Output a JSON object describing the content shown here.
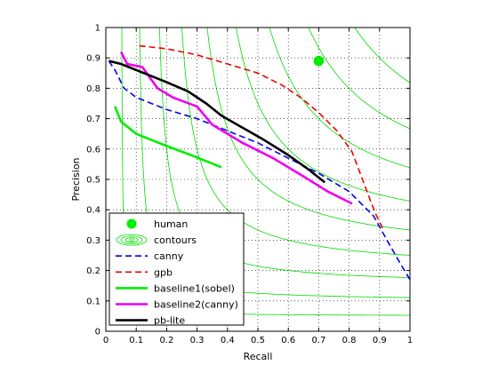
{
  "chart_data": {
    "type": "line",
    "title": "",
    "xlabel": "Recall",
    "ylabel": "Precision",
    "xlim": [
      0,
      1
    ],
    "ylim": [
      0,
      1
    ],
    "xticks": [
      "0",
      "0.1",
      "0.2",
      "0.3",
      "0.4",
      "0.5",
      "0.6",
      "0.7",
      "0.8",
      "0.9",
      "1"
    ],
    "yticks": [
      "0",
      "0.1",
      "0.2",
      "0.3",
      "0.4",
      "0.5",
      "0.6",
      "0.7",
      "0.8",
      "0.9",
      "1"
    ],
    "grid": "dotted",
    "legend_position": "bottom-left",
    "contour_f_values": [
      0.1,
      0.2,
      0.3,
      0.4,
      0.5,
      0.6,
      0.7,
      0.8,
      0.9
    ],
    "series": [
      {
        "name": "human",
        "kind": "marker",
        "color": "#00ee00",
        "points": [
          [
            0.7,
            0.89
          ]
        ]
      },
      {
        "name": "contours",
        "kind": "iso-f",
        "color": "#00dd00"
      },
      {
        "name": "canny",
        "kind": "line",
        "color": "#0000ee",
        "dash": "dashed",
        "points": [
          [
            0.01,
            0.89
          ],
          [
            0.03,
            0.86
          ],
          [
            0.06,
            0.8
          ],
          [
            0.1,
            0.77
          ],
          [
            0.2,
            0.73
          ],
          [
            0.3,
            0.7
          ],
          [
            0.4,
            0.66
          ],
          [
            0.5,
            0.62
          ],
          [
            0.6,
            0.57
          ],
          [
            0.7,
            0.52
          ],
          [
            0.8,
            0.46
          ],
          [
            0.88,
            0.38
          ],
          [
            0.93,
            0.29
          ],
          [
            0.97,
            0.22
          ],
          [
            1.0,
            0.17
          ]
        ]
      },
      {
        "name": "gpb",
        "kind": "line",
        "color": "#ee0000",
        "dash": "dashed",
        "points": [
          [
            0.11,
            0.94
          ],
          [
            0.2,
            0.93
          ],
          [
            0.3,
            0.91
          ],
          [
            0.4,
            0.88
          ],
          [
            0.5,
            0.85
          ],
          [
            0.58,
            0.81
          ],
          [
            0.64,
            0.77
          ],
          [
            0.7,
            0.72
          ],
          [
            0.76,
            0.66
          ],
          [
            0.81,
            0.59
          ],
          [
            0.84,
            0.51
          ],
          [
            0.87,
            0.43
          ],
          [
            0.89,
            0.38
          ],
          [
            0.91,
            0.34
          ]
        ]
      },
      {
        "name": "baseline1(sobel)",
        "kind": "line",
        "color": "#00ee00",
        "dash": "solid",
        "points": [
          [
            0.03,
            0.74
          ],
          [
            0.05,
            0.69
          ],
          [
            0.1,
            0.65
          ],
          [
            0.15,
            0.63
          ],
          [
            0.2,
            0.61
          ],
          [
            0.28,
            0.58
          ],
          [
            0.33,
            0.56
          ],
          [
            0.38,
            0.54
          ]
        ]
      },
      {
        "name": "baseline2(canny)",
        "kind": "line",
        "color": "#ee00ee",
        "dash": "solid",
        "points": [
          [
            0.05,
            0.92
          ],
          [
            0.07,
            0.88
          ],
          [
            0.12,
            0.87
          ],
          [
            0.17,
            0.8
          ],
          [
            0.22,
            0.77
          ],
          [
            0.3,
            0.74
          ],
          [
            0.35,
            0.68
          ],
          [
            0.45,
            0.62
          ],
          [
            0.55,
            0.57
          ],
          [
            0.65,
            0.51
          ],
          [
            0.73,
            0.46
          ],
          [
            0.81,
            0.42
          ]
        ]
      },
      {
        "name": "pb-lite",
        "kind": "line",
        "color": "#000000",
        "dash": "solid",
        "points": [
          [
            0.01,
            0.89
          ],
          [
            0.05,
            0.88
          ],
          [
            0.1,
            0.86
          ],
          [
            0.15,
            0.84
          ],
          [
            0.2,
            0.82
          ],
          [
            0.27,
            0.79
          ],
          [
            0.33,
            0.75
          ],
          [
            0.38,
            0.71
          ],
          [
            0.45,
            0.67
          ],
          [
            0.52,
            0.63
          ],
          [
            0.6,
            0.58
          ],
          [
            0.67,
            0.53
          ],
          [
            0.72,
            0.49
          ]
        ]
      }
    ]
  }
}
